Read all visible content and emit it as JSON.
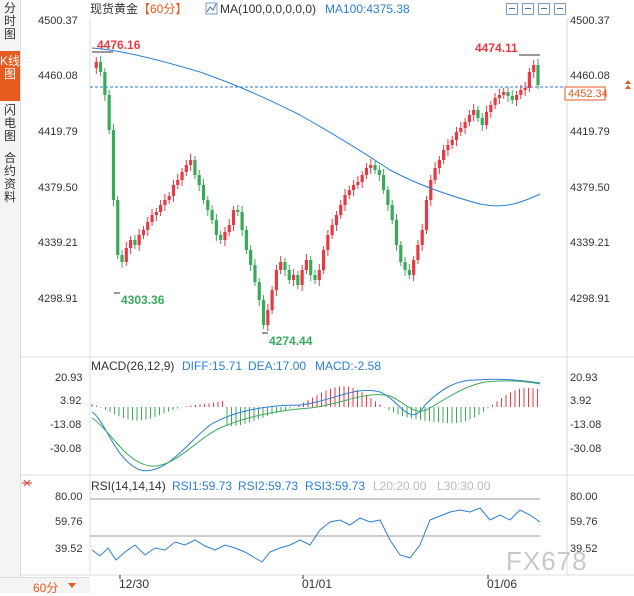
{
  "sidebar": {
    "tabs": [
      {
        "label": "分时图",
        "active": false
      },
      {
        "label": "K线图",
        "active": true
      },
      {
        "label": "闪电图",
        "active": false
      },
      {
        "label": "合约资料",
        "active": false
      }
    ]
  },
  "header": {
    "symbol": "现货黄金",
    "period": "【60分】",
    "ma_params": "MA(100,0,0,0,0,0)",
    "ma_value": "MA100:4375.38"
  },
  "main_axis": {
    "ticks": [
      "4500.37",
      "4460.08",
      "4419.79",
      "4379.50",
      "4339.21",
      "4298.91"
    ],
    "current_price": "4452.34"
  },
  "annotations": {
    "high_left": "4476.16",
    "high_right": "4474.11",
    "low_1": "4303.36",
    "low_2": "4274.44"
  },
  "macd": {
    "title": "MACD(26,12,9)",
    "diff": "DIFF:15.71",
    "dea": "DEA:17.00",
    "macd": "MACD:-2.58",
    "ticks": [
      "20.93",
      "3.92",
      "-13.08",
      "-30.08"
    ]
  },
  "rsi": {
    "title": "RSI(14,14,14)",
    "rsi1": "RSI1:59.73",
    "rsi2": "RSI2:59.73",
    "rsi3": "RSI3:59.73",
    "l20": "L20:20.00",
    "l30": "L30:30.00",
    "ticks": [
      "80.00",
      "59.76",
      "39.52"
    ]
  },
  "time_axis": [
    "12/30",
    "01/01",
    "01/06"
  ],
  "bottom": {
    "period_select": "60分"
  },
  "watermark": "FX678",
  "colors": {
    "up": "#e63a45",
    "down": "#3aaa5a",
    "ma": "#2b7fd4",
    "accent": "#e65b20"
  }
}
